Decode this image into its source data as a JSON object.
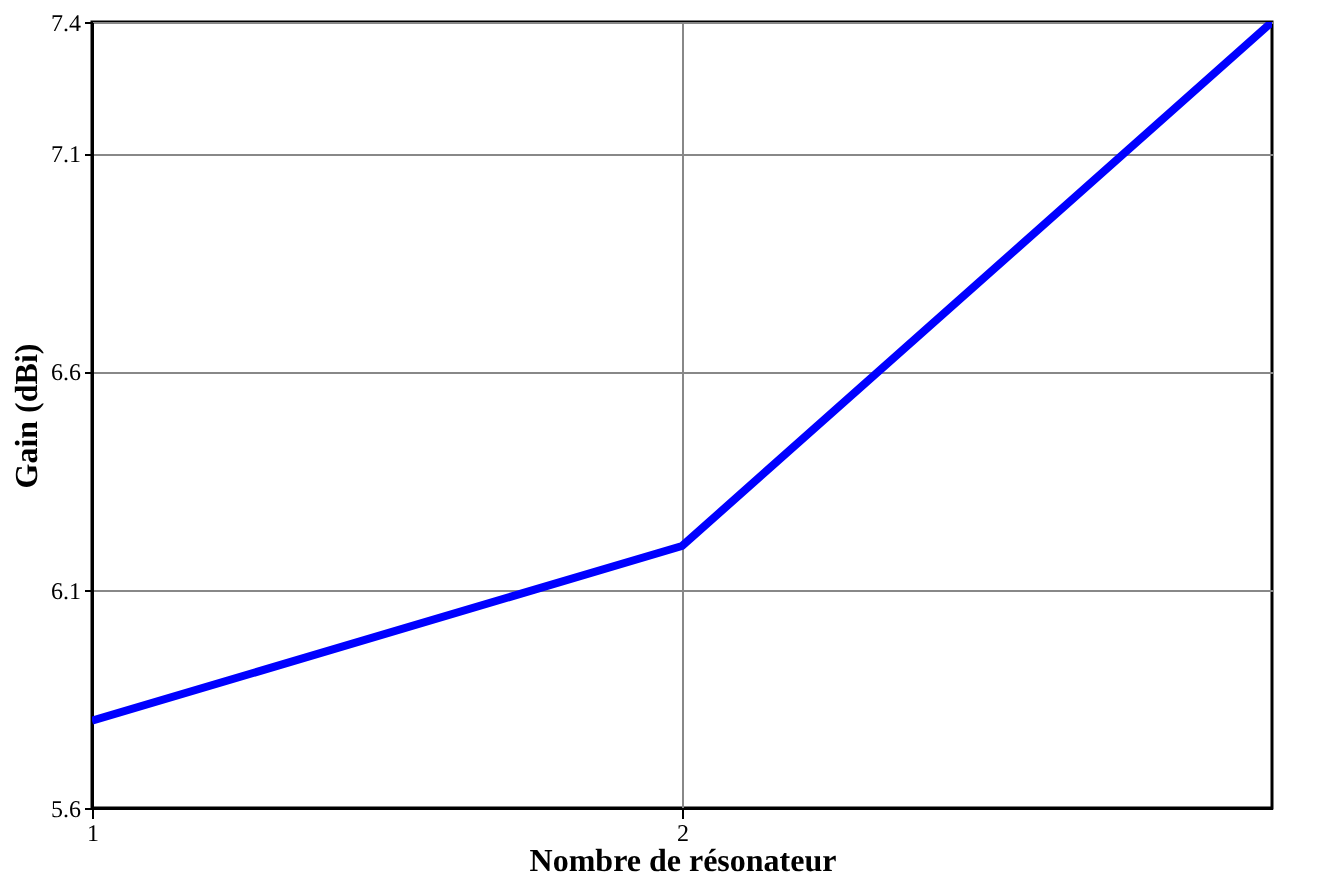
{
  "chart_data": {
    "type": "line",
    "xlabel": "Nombre de résonateur",
    "ylabel": "Gain (dBi)",
    "x": [
      1,
      2,
      3
    ],
    "series": [
      {
        "color": "#0000ff",
        "values": [
          5.8,
          6.2,
          7.4
        ]
      }
    ],
    "xlim": [
      1,
      3
    ],
    "xticks": [
      1,
      2
    ],
    "ylim": [
      5.6,
      7.4
    ],
    "yticks": [
      5.6,
      6.1,
      6.6,
      7.1,
      7.4
    ],
    "grid": true,
    "marker": "none",
    "line_style": "solid"
  }
}
